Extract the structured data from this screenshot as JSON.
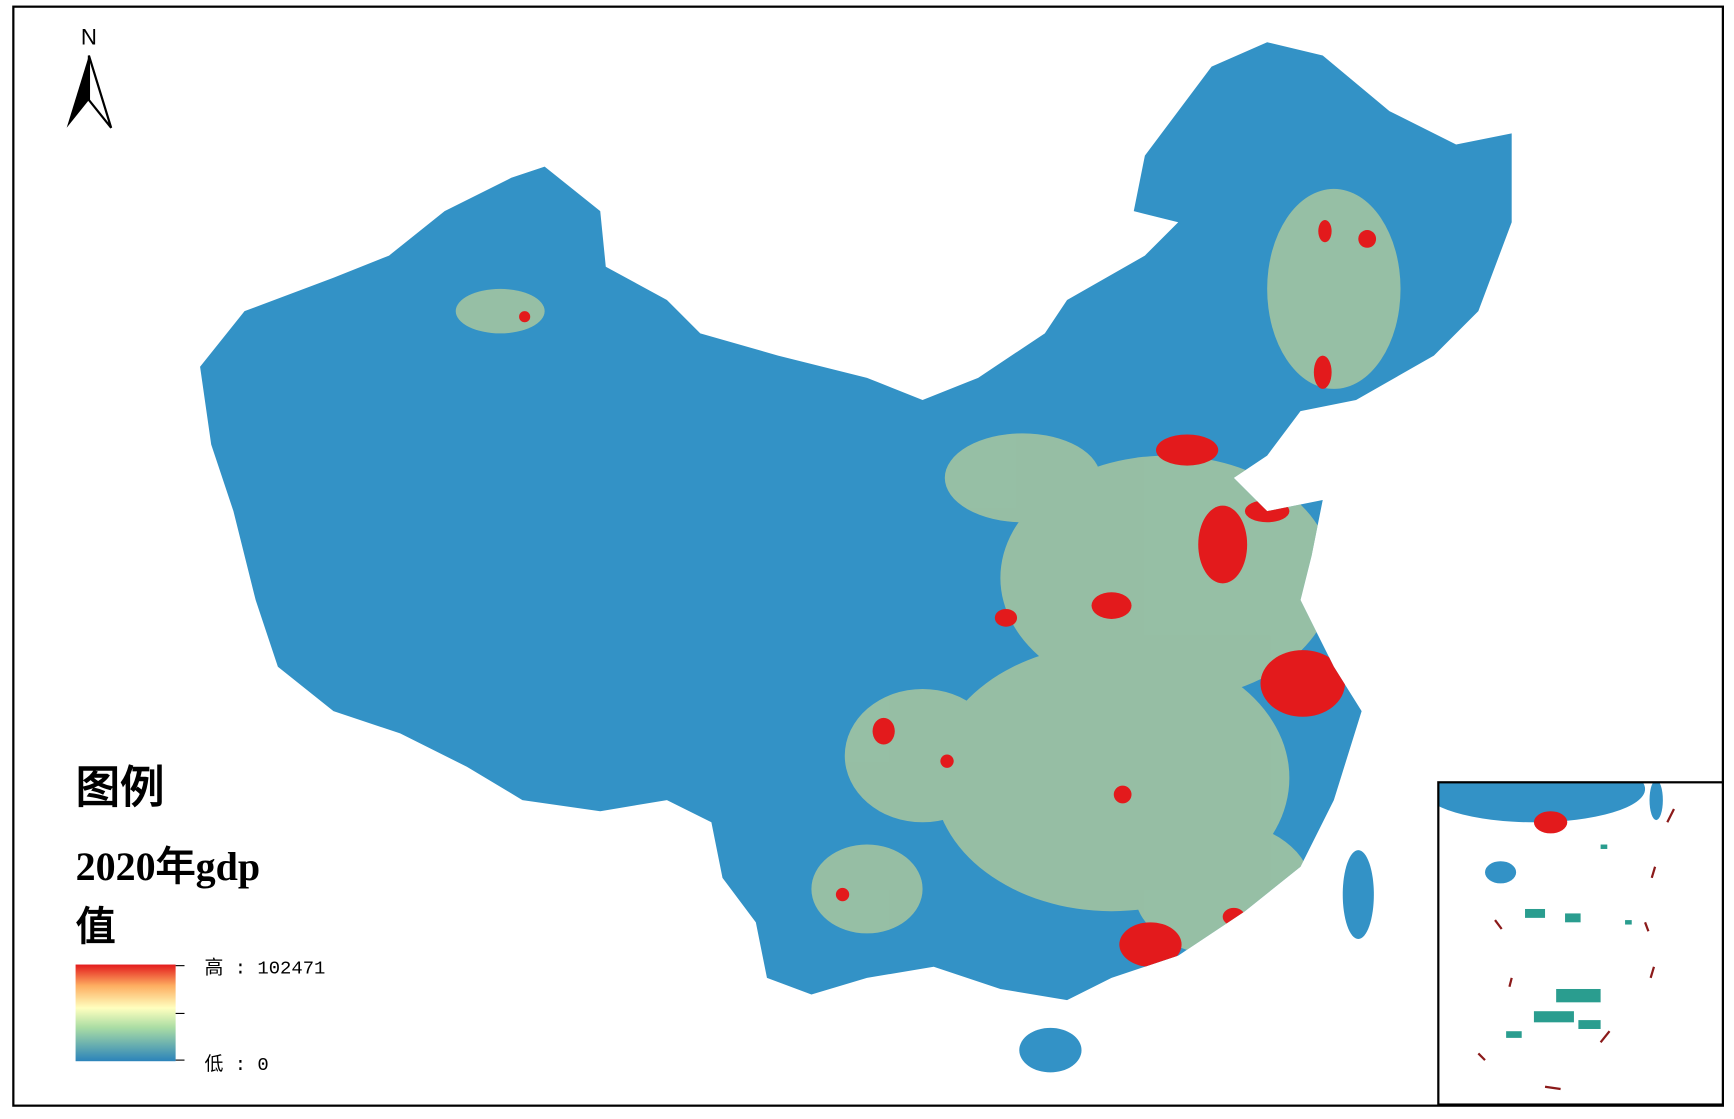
{
  "north": "N",
  "legend": {
    "title": "图例",
    "field_line1": "2020年gdp",
    "field_line2": "值",
    "high": "高 : 102471",
    "low": "低 : 0"
  }
}
